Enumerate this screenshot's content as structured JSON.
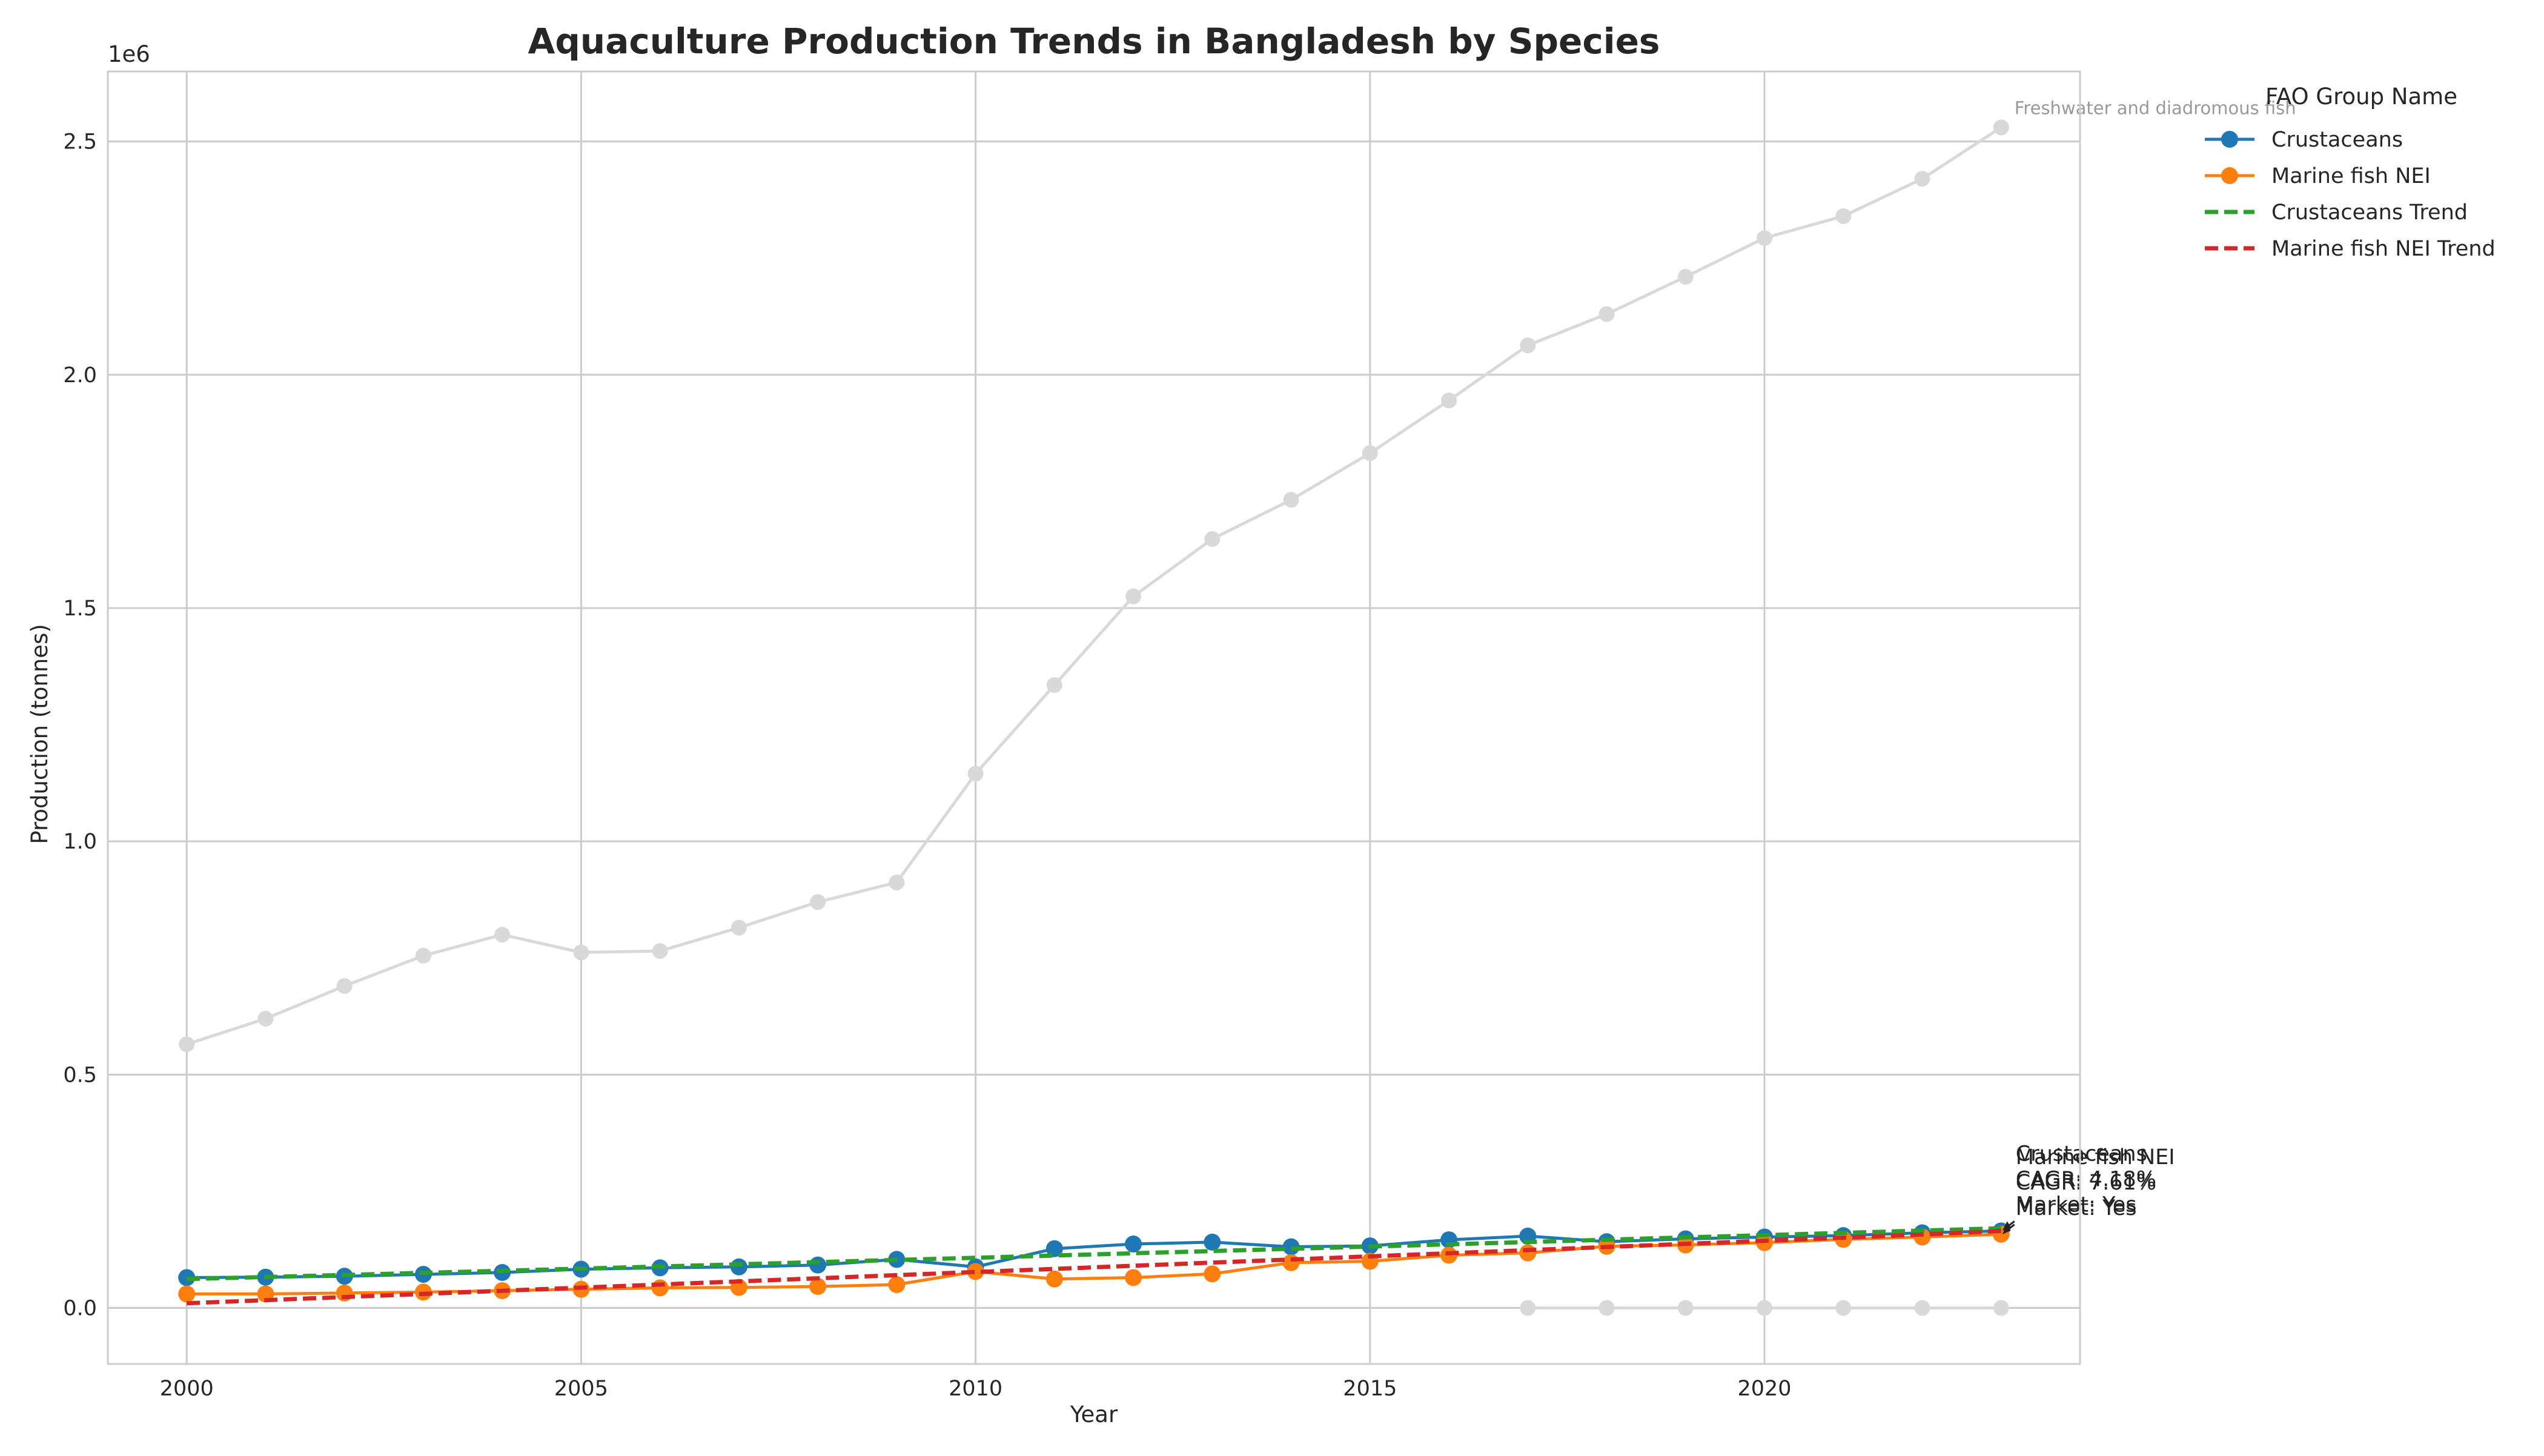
{
  "chart_data": {
    "type": "line",
    "title": "Aquaculture Production Trends in Bangladesh by Species",
    "xlabel": "Year",
    "ylabel": "Production (tonnes)",
    "y_offset_label": "1e6",
    "xlim": [
      1999,
      2024
    ],
    "ylim": [
      -0.12,
      2.65
    ],
    "y_scale_note": "y values in millions of tonnes (axis multiplier 1e6)",
    "x_ticks": [
      2000,
      2005,
      2010,
      2015,
      2020
    ],
    "x_tick_labels": [
      "2000",
      "2005",
      "2010",
      "2015",
      "2020"
    ],
    "y_ticks": [
      0.0,
      0.5,
      1.0,
      1.5,
      2.0,
      2.5
    ],
    "y_tick_labels": [
      "0.0",
      "0.5",
      "1.0",
      "1.5",
      "2.0",
      "2.5"
    ],
    "grid": true,
    "legend": {
      "title": "FAO Group Name",
      "placement": "outside-top-right",
      "entries": [
        "Crustaceans",
        "Marine fish NEI",
        "Crustaceans Trend",
        "Marine fish NEI Trend"
      ]
    },
    "series": [
      {
        "name": "Freshwater and diadromous fish",
        "role": "background",
        "color": "#d9d9d9",
        "marker": "circle",
        "style": "solid",
        "x": [
          2000,
          2001,
          2002,
          2003,
          2004,
          2005,
          2006,
          2007,
          2008,
          2009,
          2010,
          2011,
          2012,
          2013,
          2014,
          2015,
          2016,
          2017,
          2018,
          2019,
          2020,
          2021,
          2022,
          2023
        ],
        "values": [
          0.565,
          0.62,
          0.69,
          0.755,
          0.8,
          0.762,
          0.765,
          0.815,
          0.87,
          0.912,
          1.145,
          1.335,
          1.525,
          1.648,
          1.732,
          1.832,
          1.945,
          2.063,
          2.13,
          2.21,
          2.293,
          2.34,
          2.42,
          2.53
        ]
      },
      {
        "name": "",
        "role": "background",
        "color": "#d9d9d9",
        "marker": "circle",
        "style": "solid",
        "x": [
          2017,
          2018,
          2019,
          2020,
          2021,
          2022,
          2023
        ],
        "values": [
          0.0,
          0.0,
          0.0,
          0.0,
          0.0,
          0.0,
          0.0
        ]
      },
      {
        "name": "Crustaceans",
        "role": "main",
        "color": "#1f77b4",
        "marker": "circle",
        "style": "solid",
        "x": [
          2000,
          2001,
          2002,
          2003,
          2004,
          2005,
          2006,
          2007,
          2008,
          2009,
          2010,
          2011,
          2012,
          2013,
          2014,
          2015,
          2016,
          2017,
          2018,
          2019,
          2020,
          2021,
          2022,
          2023
        ],
        "values": [
          0.065,
          0.066,
          0.068,
          0.072,
          0.076,
          0.083,
          0.086,
          0.088,
          0.092,
          0.104,
          0.088,
          0.127,
          0.137,
          0.141,
          0.131,
          0.133,
          0.146,
          0.154,
          0.142,
          0.148,
          0.152,
          0.155,
          0.161,
          0.165
        ]
      },
      {
        "name": "Marine fish NEI",
        "role": "main",
        "color": "#ff7f0e",
        "marker": "circle",
        "style": "solid",
        "x": [
          2000,
          2001,
          2002,
          2003,
          2004,
          2005,
          2006,
          2007,
          2008,
          2009,
          2010,
          2011,
          2012,
          2013,
          2014,
          2015,
          2016,
          2017,
          2018,
          2019,
          2020,
          2021,
          2022,
          2023
        ],
        "values": [
          0.03,
          0.03,
          0.032,
          0.034,
          0.037,
          0.04,
          0.043,
          0.044,
          0.046,
          0.05,
          0.078,
          0.062,
          0.065,
          0.073,
          0.097,
          0.1,
          0.113,
          0.118,
          0.132,
          0.135,
          0.14,
          0.147,
          0.152,
          0.158
        ]
      },
      {
        "name": "Crustaceans Trend",
        "role": "trend",
        "color": "#2ca02c",
        "marker": "none",
        "style": "dashed",
        "x": [
          2000,
          2001,
          2002,
          2003,
          2004,
          2005,
          2006,
          2007,
          2008,
          2009,
          2010,
          2011,
          2012,
          2013,
          2014,
          2015,
          2016,
          2017,
          2018,
          2019,
          2020,
          2021,
          2022,
          2023
        ],
        "values": [
          0.062,
          0.0663,
          0.0707,
          0.0752,
          0.0797,
          0.0843,
          0.0889,
          0.0935,
          0.0982,
          0.1029,
          0.1076,
          0.1123,
          0.1171,
          0.1219,
          0.1267,
          0.1315,
          0.1364,
          0.1413,
          0.1462,
          0.1511,
          0.156,
          0.1609,
          0.1658,
          0.1707
        ]
      },
      {
        "name": "Marine fish NEI Trend",
        "role": "trend",
        "color": "#d62728",
        "marker": "none",
        "style": "dashed",
        "x": [
          2000,
          2001,
          2002,
          2003,
          2004,
          2005,
          2006,
          2007,
          2008,
          2009,
          2010,
          2011,
          2012,
          2013,
          2014,
          2015,
          2016,
          2017,
          2018,
          2019,
          2020,
          2021,
          2022,
          2023
        ],
        "values": [
          0.01,
          0.0167,
          0.0234,
          0.0301,
          0.0368,
          0.0435,
          0.0502,
          0.0569,
          0.0636,
          0.0703,
          0.077,
          0.0837,
          0.0904,
          0.0971,
          0.1038,
          0.1105,
          0.1172,
          0.1239,
          0.1306,
          0.1373,
          0.144,
          0.1507,
          0.1574,
          0.165
        ]
      }
    ],
    "annotations": [
      {
        "text": "Freshwater and diadromous fish",
        "x": 2023,
        "y": 2.53,
        "color": "#999999"
      },
      {
        "lines": [
          "Crustaceans",
          "CAGR: 4.18%",
          "Market: Yes"
        ],
        "x": 2023,
        "y": 0.165,
        "color": "#222222"
      },
      {
        "lines": [
          "Marine fish NEI",
          "CAGR: 7.61%",
          "Market: Yes"
        ],
        "x": 2023,
        "y": 0.158,
        "color": "#222222"
      }
    ]
  }
}
